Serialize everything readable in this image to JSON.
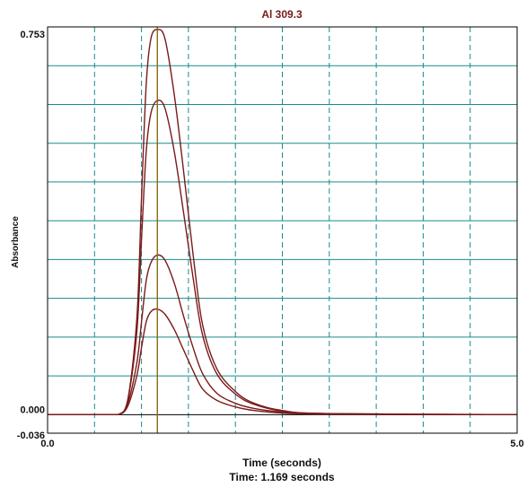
{
  "chart_data": {
    "type": "line",
    "title": "Al 309.3",
    "xlabel": "Time (seconds)",
    "ylabel": "Absorbance",
    "status": "Time: 1.169 seconds",
    "xlim": [
      0.0,
      5.0
    ],
    "ylim": [
      -0.036,
      0.753
    ],
    "x_tick_labels": [
      "0.0",
      "5.0"
    ],
    "y_tick_labels": [
      "0.753",
      "0.000",
      "-0.036"
    ],
    "cursor_x": 1.169,
    "grid": true,
    "colors": {
      "grid": "#1a8a8a",
      "series": "#7a1a1a",
      "cursor": "#8b6a10",
      "frame": "#000000"
    },
    "x": [
      0.0,
      0.6,
      0.75,
      0.85,
      0.95,
      1.0,
      1.05,
      1.1,
      1.169,
      1.25,
      1.35,
      1.45,
      1.55,
      1.65,
      1.8,
      2.0,
      2.2,
      2.5,
      3.0,
      5.0
    ],
    "series": [
      {
        "values": [
          0.0,
          0.0,
          0.0,
          0.025,
          0.185,
          0.42,
          0.64,
          0.73,
          0.748,
          0.73,
          0.62,
          0.47,
          0.31,
          0.175,
          0.09,
          0.045,
          0.022,
          0.008,
          0.002,
          0.0
        ]
      },
      {
        "values": [
          0.0,
          0.0,
          0.0,
          0.025,
          0.16,
          0.34,
          0.51,
          0.585,
          0.61,
          0.595,
          0.51,
          0.39,
          0.265,
          0.155,
          0.08,
          0.04,
          0.02,
          0.007,
          0.002,
          0.0
        ]
      },
      {
        "values": [
          0.0,
          0.0,
          0.0,
          0.02,
          0.1,
          0.18,
          0.26,
          0.295,
          0.31,
          0.3,
          0.255,
          0.19,
          0.13,
          0.08,
          0.042,
          0.022,
          0.012,
          0.005,
          0.001,
          0.0
        ]
      },
      {
        "values": [
          0.0,
          0.0,
          0.0,
          0.015,
          0.075,
          0.13,
          0.18,
          0.2,
          0.205,
          0.195,
          0.165,
          0.125,
          0.085,
          0.05,
          0.028,
          0.015,
          0.008,
          0.003,
          0.001,
          0.0
        ]
      }
    ]
  }
}
